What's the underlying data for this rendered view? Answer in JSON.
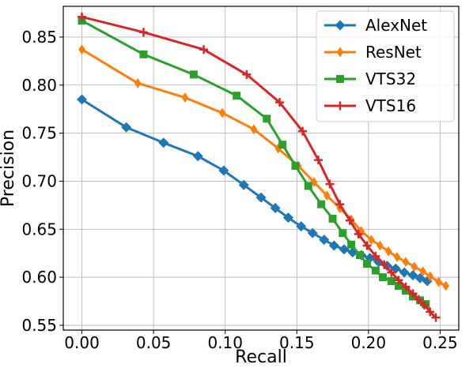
{
  "chart_data": {
    "type": "line",
    "title": "",
    "xlabel": "Recall",
    "ylabel": "Precision",
    "xlim": [
      -0.013,
      0.263
    ],
    "ylim": [
      0.545,
      0.882
    ],
    "xticks": [
      0.0,
      0.05,
      0.1,
      0.15,
      0.2,
      0.25
    ],
    "xtick_labels": [
      "0.00",
      "0.05",
      "0.10",
      "0.15",
      "0.20",
      "0.25"
    ],
    "yticks": [
      0.55,
      0.6,
      0.65,
      0.7,
      0.75,
      0.8,
      0.85
    ],
    "ytick_labels": [
      "0.55",
      "0.60",
      "0.65",
      "0.70",
      "0.75",
      "0.80",
      "0.85"
    ],
    "grid": true,
    "legend_position": "top-right",
    "series": [
      {
        "name": "AlexNet",
        "color": "#1f77b4",
        "marker": "diamond",
        "x": [
          0.0,
          0.031,
          0.057,
          0.081,
          0.099,
          0.113,
          0.125,
          0.135,
          0.144,
          0.153,
          0.161,
          0.169,
          0.176,
          0.183,
          0.189,
          0.195,
          0.201,
          0.207,
          0.213,
          0.219,
          0.225,
          0.231,
          0.236,
          0.241
        ],
        "y": [
          0.785,
          0.756,
          0.74,
          0.726,
          0.711,
          0.696,
          0.683,
          0.672,
          0.662,
          0.653,
          0.646,
          0.639,
          0.633,
          0.629,
          0.626,
          0.623,
          0.62,
          0.616,
          0.612,
          0.609,
          0.605,
          0.602,
          0.599,
          0.596
        ]
      },
      {
        "name": "ResNet",
        "color": "#ff7f0e",
        "marker": "thin-diamond",
        "x": [
          0.0,
          0.039,
          0.072,
          0.098,
          0.12,
          0.137,
          0.151,
          0.162,
          0.171,
          0.18,
          0.188,
          0.195,
          0.202,
          0.208,
          0.214,
          0.22,
          0.226,
          0.232,
          0.238,
          0.243,
          0.249,
          0.254
        ],
        "y": [
          0.837,
          0.802,
          0.787,
          0.771,
          0.754,
          0.734,
          0.716,
          0.699,
          0.685,
          0.672,
          0.66,
          0.648,
          0.639,
          0.633,
          0.627,
          0.621,
          0.616,
          0.611,
          0.606,
          0.601,
          0.595,
          0.591
        ]
      },
      {
        "name": "VTS32",
        "color": "#2ca02c",
        "marker": "square",
        "x": [
          0.0,
          0.043,
          0.078,
          0.108,
          0.129,
          0.14,
          0.149,
          0.158,
          0.167,
          0.175,
          0.182,
          0.188,
          0.194,
          0.199,
          0.205,
          0.21,
          0.216,
          0.221,
          0.226,
          0.231,
          0.236,
          0.24
        ],
        "y": [
          0.867,
          0.832,
          0.811,
          0.789,
          0.765,
          0.738,
          0.716,
          0.695,
          0.676,
          0.661,
          0.646,
          0.634,
          0.623,
          0.614,
          0.607,
          0.6,
          0.596,
          0.591,
          0.586,
          0.58,
          0.576,
          0.572
        ]
      },
      {
        "name": "VTS16",
        "color": "#d62728",
        "marker": "plus",
        "x": [
          0.0,
          0.043,
          0.085,
          0.115,
          0.138,
          0.154,
          0.165,
          0.173,
          0.18,
          0.187,
          0.193,
          0.199,
          0.205,
          0.211,
          0.216,
          0.221,
          0.226,
          0.231,
          0.235,
          0.239,
          0.243,
          0.247
        ],
        "y": [
          0.871,
          0.855,
          0.837,
          0.811,
          0.782,
          0.752,
          0.722,
          0.697,
          0.676,
          0.659,
          0.645,
          0.633,
          0.622,
          0.613,
          0.605,
          0.597,
          0.59,
          0.583,
          0.577,
          0.571,
          0.564,
          0.558
        ]
      }
    ]
  }
}
